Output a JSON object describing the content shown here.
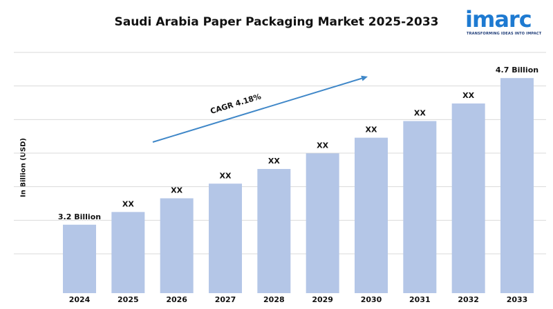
{
  "brand": {
    "name": "imarc",
    "tagline": "TRANSFORMING IDEAS INTO IMPACT",
    "color": "#1e7ad1"
  },
  "chart_data": {
    "type": "bar",
    "title": "Saudi Arabia Paper Packaging Market 2025-2033",
    "ylabel": "In Billion (USD)",
    "xlabel": "",
    "categories": [
      "2024",
      "2025",
      "2026",
      "2027",
      "2028",
      "2029",
      "2030",
      "2031",
      "2032",
      "2033"
    ],
    "values": [
      3.2,
      3.33,
      3.47,
      3.62,
      3.77,
      3.93,
      4.09,
      4.26,
      4.44,
      4.7
    ],
    "data_labels": [
      "3.2 Billion",
      "XX",
      "XX",
      "XX",
      "XX",
      "XX",
      "XX",
      "XX",
      "XX",
      "4.7 Billion"
    ],
    "annotation": "CAGR 4.18%",
    "grid": true,
    "bar_color": "#b4c6e7",
    "arrow_color": "#3f87c8",
    "ylim": [
      2.5,
      4.8
    ]
  }
}
